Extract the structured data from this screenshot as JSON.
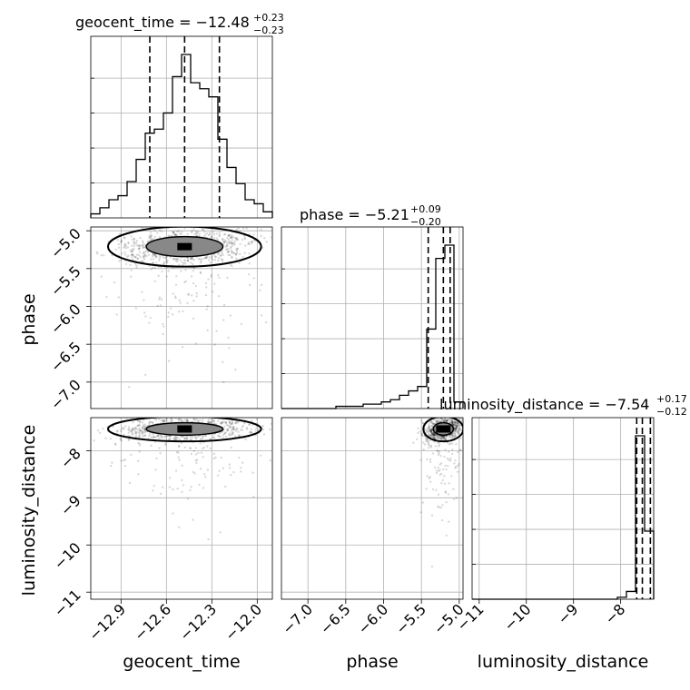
{
  "chart_data": {
    "type": "corner",
    "parameters": [
      "geocent_time",
      "phase",
      "luminosity_distance"
    ],
    "titles": [
      {
        "param": "geocent_time",
        "prefix": "geocent_time = ",
        "median": "−12.48",
        "plus": "+0.23",
        "minus": "−0.23"
      },
      {
        "param": "phase",
        "prefix": "phase = ",
        "median": "−5.21",
        "plus": "+0.09",
        "minus": "−0.20"
      },
      {
        "param": "luminosity_distance",
        "prefix": "luminosity_distance = ",
        "median": "−7.54",
        "plus": "+0.17",
        "minus": "−0.12"
      }
    ],
    "axes": {
      "geocent_time": {
        "range": [
          -13.1,
          -11.9
        ],
        "ticks": [
          -12.9,
          -12.6,
          -12.3,
          -12.0
        ],
        "tick_labels": [
          "−12.9",
          "−12.6",
          "−12.3",
          "−12.0"
        ]
      },
      "phase": {
        "range": [
          -7.35,
          -4.95
        ],
        "ticks": [
          -7.0,
          -6.5,
          -6.0,
          -5.5,
          -5.0
        ],
        "tick_labels": [
          "−7.0",
          "−6.5",
          "−6.0",
          "−5.5",
          "−5.0"
        ]
      },
      "luminosity_distance": {
        "range": [
          -11.15,
          -7.3
        ],
        "ticks": [
          -11,
          -10,
          -9,
          -8
        ],
        "tick_labels": [
          "−11",
          "−10",
          "−9",
          "−8"
        ]
      }
    },
    "histograms": {
      "geocent_time": {
        "edges": [
          -13.1,
          -13.04,
          -12.98,
          -12.92,
          -12.86,
          -12.8,
          -12.74,
          -12.68,
          -12.62,
          -12.56,
          -12.5,
          -12.44,
          -12.38,
          -12.32,
          -12.26,
          -12.2,
          -12.14,
          -12.08,
          -12.02,
          -11.96,
          -11.9
        ],
        "counts": [
          2,
          5,
          9,
          11,
          18,
          29,
          42,
          44,
          52,
          70,
          81,
          67,
          64,
          60,
          39,
          25,
          17,
          9,
          7,
          3
        ]
      },
      "phase": {
        "edges": [
          -7.35,
          -7.23,
          -7.11,
          -6.99,
          -6.87,
          -6.75,
          -6.63,
          -6.51,
          -6.39,
          -6.27,
          -6.15,
          -6.03,
          -5.91,
          -5.79,
          -5.67,
          -5.55,
          -5.43,
          -5.31,
          -5.19,
          -5.07,
          -4.95
        ],
        "counts": [
          0,
          0,
          0,
          0,
          0,
          0,
          1,
          1,
          1,
          2,
          2,
          3,
          4,
          6,
          8,
          10,
          36,
          68,
          74,
          3
        ]
      },
      "luminosity_distance": {
        "edges": [
          -11.15,
          -10.9575,
          -10.765,
          -10.5725,
          -10.38,
          -10.1875,
          -9.995,
          -9.8025,
          -9.61,
          -9.4175,
          -9.225,
          -9.0325,
          -8.84,
          -8.6475,
          -8.455,
          -8.2625,
          -8.07,
          -7.8775,
          -7.685,
          -7.4925,
          -7.3
        ],
        "counts": [
          0,
          0,
          0,
          0,
          0,
          0,
          0,
          0,
          0,
          0,
          0,
          0,
          0,
          0,
          0,
          0,
          1,
          4,
          84,
          35
        ]
      }
    },
    "quantiles": {
      "geocent_time": [
        -12.71,
        -12.48,
        -12.25
      ],
      "phase": [
        -5.41,
        -5.21,
        -5.12
      ],
      "luminosity_distance": [
        -7.66,
        -7.54,
        -7.37
      ]
    },
    "density": {
      "phase_vs_geocent_time": {
        "center": [
          -12.48,
          -5.21
        ],
        "spread": [
          0.23,
          0.12
        ],
        "corr": 0.2
      },
      "luminosity_distance_vs_geocent_time": {
        "center": [
          -12.48,
          -7.54
        ],
        "spread": [
          0.23,
          0.12
        ],
        "corr": 0.1
      },
      "luminosity_distance_vs_phase": {
        "center": [
          -5.21,
          -7.54
        ],
        "spread": [
          0.12,
          0.12
        ],
        "corr": 0.3
      }
    },
    "grid": true
  }
}
